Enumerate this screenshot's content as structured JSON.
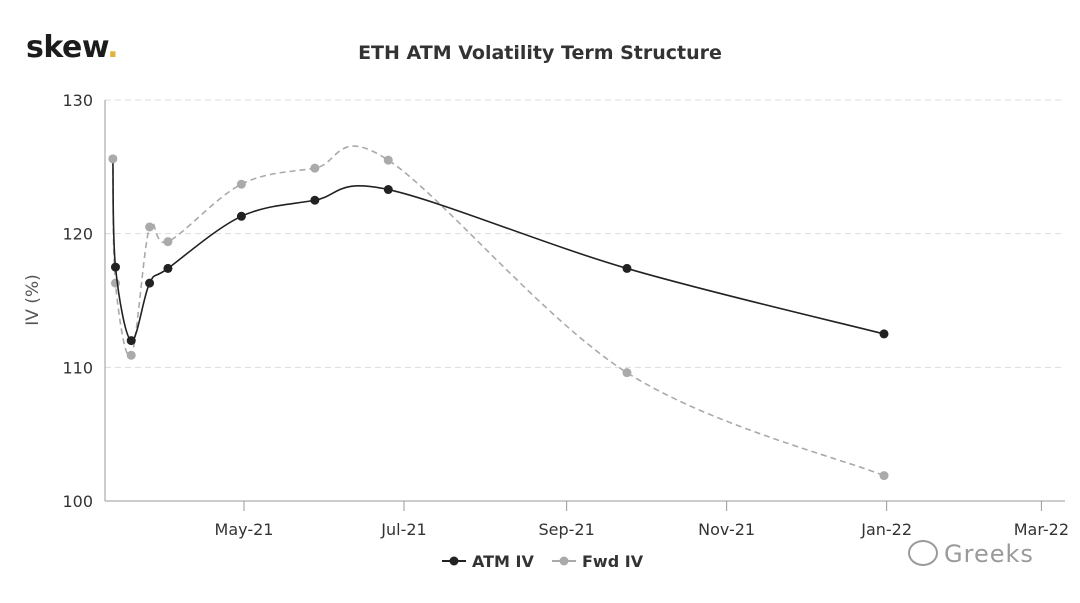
{
  "brand": {
    "name": "skew",
    "dot": ".",
    "accent": "#e3b23c"
  },
  "watermark": {
    "text": "Greeks",
    "icon": "wechat-icon"
  },
  "colors": {
    "atm": "#222222",
    "fwd": "#aaaaaa",
    "grid": "#dddddd",
    "axis": "#999999"
  },
  "chart_data": {
    "type": "line",
    "title": "ETH ATM Volatility Term Structure",
    "xlabel": "",
    "ylabel": "IV (%)",
    "xlim": [
      "2021-03-09",
      "2022-03-10"
    ],
    "ylim": [
      100,
      130
    ],
    "yticks": [
      100,
      110,
      120,
      130
    ],
    "xticks": [
      {
        "date": "2021-05-01",
        "label": "May-21"
      },
      {
        "date": "2021-07-01",
        "label": "Jul-21"
      },
      {
        "date": "2021-09-01",
        "label": "Sep-21"
      },
      {
        "date": "2021-11-01",
        "label": "Nov-21"
      },
      {
        "date": "2022-01-01",
        "label": "Jan-22"
      },
      {
        "date": "2022-03-01",
        "label": "Mar-22"
      }
    ],
    "grid": true,
    "legend": "bottom-center",
    "series": [
      {
        "name": "ATM IV",
        "style": "solid",
        "x": [
          "2021-03-13",
          "2021-03-19",
          "2021-03-26",
          "2021-04-02",
          "2021-04-30",
          "2021-05-28",
          "2021-06-25",
          "2021-09-24",
          "2021-12-31"
        ],
        "y": [
          117.5,
          112.0,
          116.3,
          117.4,
          121.3,
          122.5,
          123.3,
          117.4,
          112.5
        ]
      },
      {
        "name": "Fwd IV",
        "style": "dashed",
        "x": [
          "2021-03-13",
          "2021-03-19",
          "2021-03-26",
          "2021-04-02",
          "2021-04-30",
          "2021-05-28",
          "2021-06-25",
          "2021-09-24",
          "2021-12-31"
        ],
        "y": [
          116.3,
          110.9,
          120.5,
          119.4,
          123.7,
          124.9,
          125.5,
          109.6,
          101.9
        ]
      }
    ],
    "first_point": {
      "x": "2021-03-12",
      "y": 125.6
    }
  }
}
